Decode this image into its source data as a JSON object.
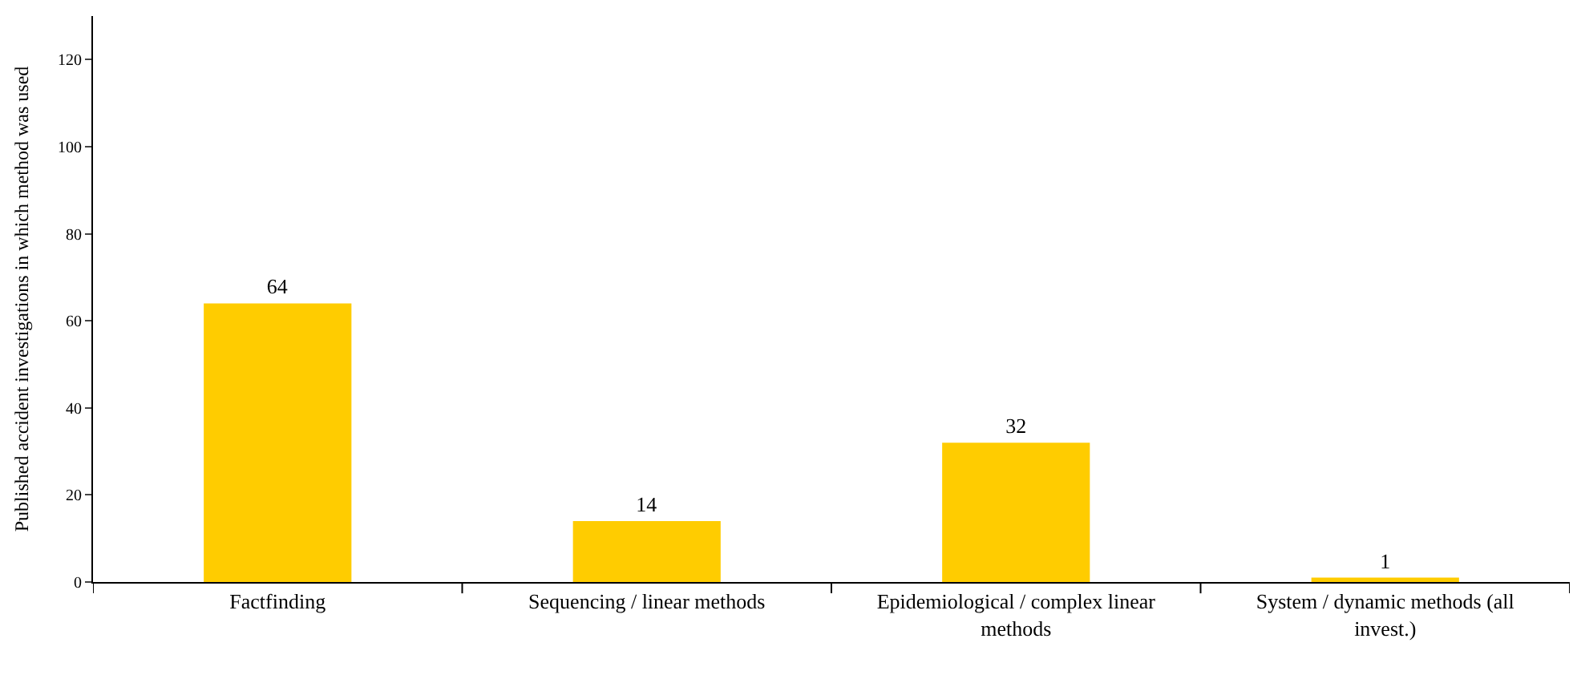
{
  "chart_data": {
    "type": "bar",
    "ylabel": "Published accident investigations in which method was used",
    "categories": [
      "Factfinding",
      "Sequencing / linear methods",
      "Epidemiological / complex linear methods",
      "System / dynamic methods (all invest.)"
    ],
    "values": [
      64,
      14,
      32,
      1
    ],
    "color": "#ffcc00",
    "ylim": [
      0,
      130
    ],
    "yticks": [
      0,
      20,
      40,
      60,
      80,
      100,
      120
    ],
    "legend": false,
    "data_labels": true
  }
}
